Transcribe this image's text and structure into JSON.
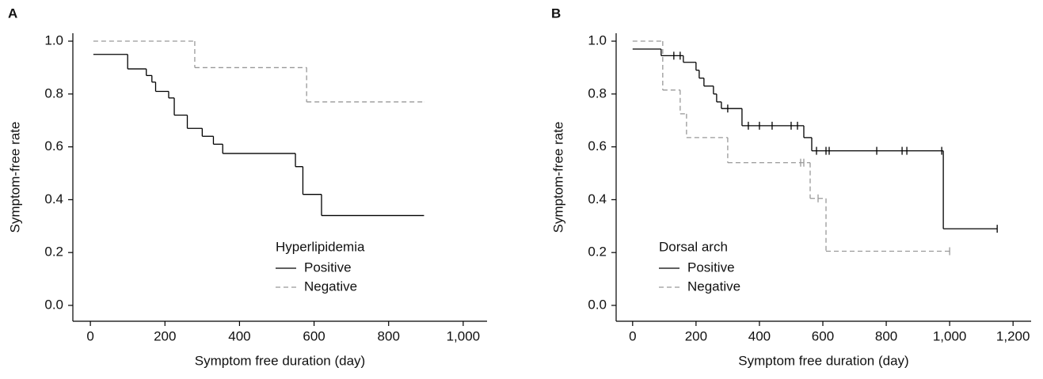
{
  "chart_data": [
    {
      "type": "step",
      "panel_label": "A",
      "x_label": "Symptom free duration (day)",
      "y_label": "Symptom-free rate",
      "legend_title": "Hyperlipidemia",
      "xlim": [
        -47,
        1064
      ],
      "ylim": [
        -0.06,
        1.03
      ],
      "xticks": [
        0,
        200,
        400,
        600,
        800,
        {
          "value": 1000,
          "label": "1,000"
        }
      ],
      "yticks": [
        {
          "value": 0,
          "label": "0.0"
        },
        {
          "value": 0.2,
          "label": "0.2"
        },
        {
          "value": 0.4,
          "label": "0.4"
        },
        {
          "value": 0.6,
          "label": "0.6"
        },
        {
          "value": 0.8,
          "label": "0.8"
        },
        {
          "value": 1,
          "label": "1.0"
        }
      ],
      "series": [
        {
          "name": "Positive",
          "color": "#000000",
          "dashed": false,
          "x": [
            8,
            100,
            150,
            165,
            175,
            210,
            225,
            260,
            300,
            330,
            355,
            550,
            570,
            620,
            895
          ],
          "values": [
            0.95,
            0.895,
            0.87,
            0.845,
            0.81,
            0.785,
            0.72,
            0.67,
            0.64,
            0.61,
            0.575,
            0.525,
            0.42,
            0.34,
            0.34
          ]
        },
        {
          "name": "Negative",
          "color": "#999999",
          "dashed": true,
          "x": [
            8,
            280,
            580,
            895
          ],
          "values": [
            1.0,
            0.9,
            0.77,
            0.77
          ]
        }
      ]
    },
    {
      "type": "step",
      "panel_label": "B",
      "x_label": "Symptom free duration (day)",
      "y_label": "Symptom-free rate",
      "legend_title": "Dorsal arch",
      "xlim": [
        -52,
        1257
      ],
      "ylim": [
        -0.06,
        1.03
      ],
      "xticks": [
        0,
        200,
        400,
        600,
        800,
        {
          "value": 1000,
          "label": "1,000"
        },
        {
          "value": 1200,
          "label": "1,200"
        }
      ],
      "yticks": [
        {
          "value": 0,
          "label": "0.0"
        },
        {
          "value": 0.2,
          "label": "0.2"
        },
        {
          "value": 0.4,
          "label": "0.4"
        },
        {
          "value": 0.6,
          "label": "0.6"
        },
        {
          "value": 0.8,
          "label": "0.8"
        },
        {
          "value": 1,
          "label": "1.0"
        }
      ],
      "series": [
        {
          "name": "Positive",
          "color": "#000000",
          "dashed": false,
          "x": [
            0,
            90,
            160,
            200,
            210,
            225,
            255,
            265,
            280,
            345,
            540,
            565,
            980,
            1150
          ],
          "values": [
            0.97,
            0.945,
            0.92,
            0.89,
            0.86,
            0.83,
            0.8,
            0.77,
            0.745,
            0.68,
            0.635,
            0.585,
            0.29,
            0.29
          ],
          "censored_x": [
            130,
            150,
            300,
            365,
            400,
            440,
            500,
            520,
            580,
            610,
            620,
            770,
            850,
            865,
            975,
            1150
          ],
          "censored_values": [
            0.945,
            0.945,
            0.745,
            0.68,
            0.68,
            0.68,
            0.68,
            0.68,
            0.585,
            0.585,
            0.585,
            0.585,
            0.585,
            0.585,
            0.585,
            0.29
          ]
        },
        {
          "name": "Negative",
          "color": "#999999",
          "dashed": true,
          "x": [
            0,
            95,
            150,
            170,
            300,
            560,
            610,
            1000
          ],
          "values": [
            1.0,
            0.815,
            0.725,
            0.635,
            0.54,
            0.405,
            0.205,
            0.205
          ],
          "censored_x": [
            530,
            540,
            585,
            1000
          ],
          "censored_values": [
            0.54,
            0.54,
            0.405,
            0.205
          ]
        }
      ]
    }
  ]
}
